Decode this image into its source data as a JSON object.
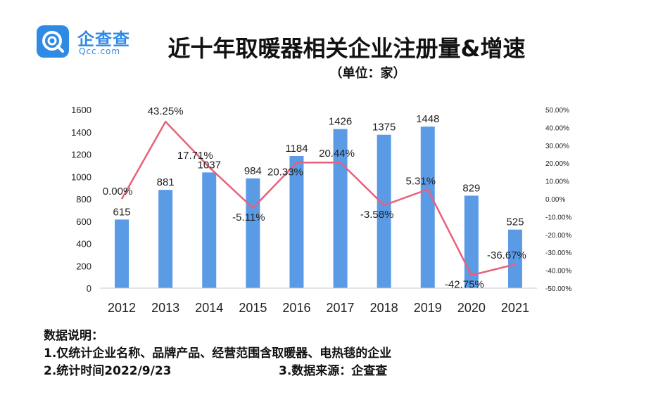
{
  "logo": {
    "name": "企查查",
    "domain": "Qcc.com",
    "icon": "qcc-search-icon",
    "color": "#2f8ae5"
  },
  "title": "近十年取暖器相关企业注册量&增速",
  "unit": "（单位：家）",
  "notes": {
    "heading": "数据说明：",
    "line1": "1.仅统计企业名称、品牌产品、经营范围含取暖器、电热毯的企业",
    "line2": "2.统计时间2022/9/23",
    "line3": "3.数据来源：企查查"
  },
  "chart_data": {
    "type": "bar",
    "categories": [
      "2012",
      "2013",
      "2014",
      "2015",
      "2016",
      "2017",
      "2018",
      "2019",
      "2020",
      "2021"
    ],
    "series": [
      {
        "type": "bar",
        "axis": "left",
        "values": [
          615,
          881,
          1037,
          984,
          1184,
          1426,
          1375,
          1448,
          829,
          525
        ],
        "labels": [
          "615",
          "881",
          "1037",
          "984",
          "1184",
          "1426",
          "1375",
          "1448",
          "829",
          "525"
        ],
        "color": "#5b9be6"
      },
      {
        "type": "line",
        "axis": "right",
        "values": [
          0.0,
          43.25,
          17.71,
          -5.11,
          20.33,
          20.44,
          -3.58,
          5.31,
          -42.75,
          -36.67
        ],
        "labels": [
          "0.00%",
          "43.25%",
          "17.71%",
          "-5.11%",
          "20.33%",
          "20.44%",
          "-3.58%",
          "5.31%",
          "-42.75%",
          "-36.67%"
        ],
        "color": "#e8617a"
      }
    ],
    "y_left": {
      "ylim": [
        0,
        1600
      ],
      "ticks": [
        "0",
        "200",
        "400",
        "600",
        "800",
        "1000",
        "1200",
        "1400",
        "1600"
      ]
    },
    "y_right": {
      "ylim": [
        -50,
        50
      ],
      "ticks": [
        "-50.00%",
        "-40.00%",
        "-30.00%",
        "-20.00%",
        "-10.00%",
        "0.00%",
        "10.00%",
        "20.00%",
        "30.00%",
        "40.00%",
        "50.00%"
      ]
    },
    "grid": false,
    "legend": "none"
  }
}
